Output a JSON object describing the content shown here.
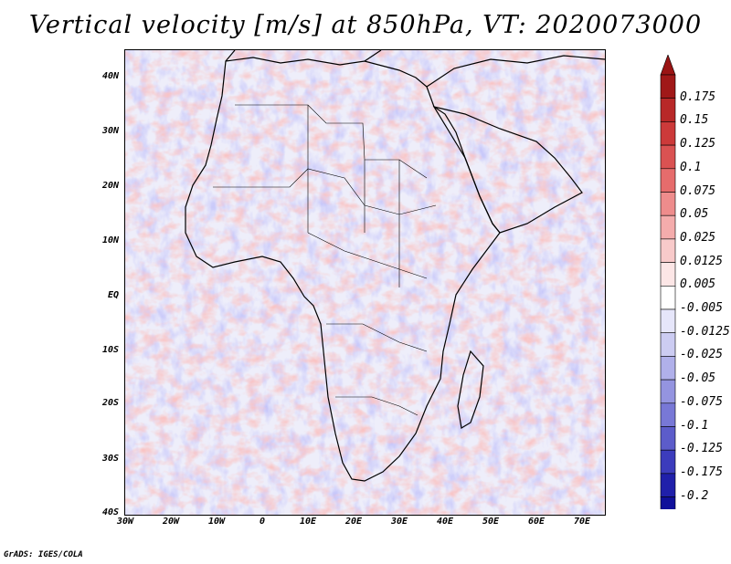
{
  "title": "Vertical velocity [m/s] at 850hPa, VT: 2020073000",
  "map": {
    "lat_labels": [
      "40N",
      "30N",
      "20N",
      "10N",
      "EQ",
      "10S",
      "20S",
      "30S",
      "40S"
    ],
    "lon_labels": [
      "30W",
      "20W",
      "10W",
      "0",
      "10E",
      "20E",
      "30E",
      "40E",
      "50E",
      "60E",
      "70E"
    ],
    "lat_range": [
      -40,
      45
    ],
    "lon_range": [
      -30,
      75
    ]
  },
  "colorbar": {
    "labels": [
      "0.175",
      "0.15",
      "0.125",
      "0.1",
      "0.075",
      "0.05",
      "0.025",
      "0.0125",
      "0.005",
      "-0.005",
      "-0.0125",
      "-0.025",
      "-0.05",
      "-0.075",
      "-0.1",
      "-0.125",
      "-0.175",
      "-0.2"
    ],
    "colors": [
      "#a01818",
      "#b82828",
      "#cc3a3a",
      "#da5252",
      "#e66c6c",
      "#ee8c8c",
      "#f4acac",
      "#f8caca",
      "#fce6e6",
      "#ffffff",
      "#e6e6fa",
      "#ccccf2",
      "#b0b0ea",
      "#9494e0",
      "#7878d6",
      "#5c5cca",
      "#3c3cbc",
      "#2020aa",
      "#10109a"
    ],
    "top_arrow_color": "#9a1414",
    "bottom_arrow_color": "#14148f"
  },
  "credit": "GrADS: IGES/COLA"
}
